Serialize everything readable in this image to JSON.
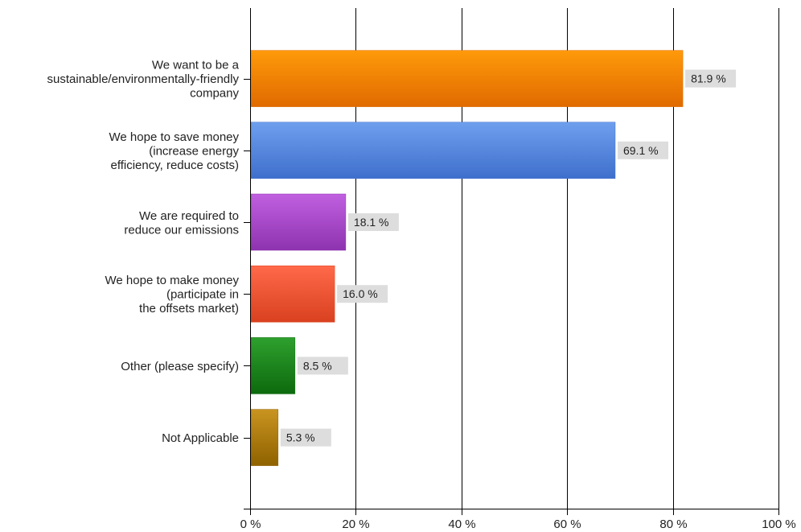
{
  "chart_data": {
    "type": "bar",
    "orientation": "horizontal",
    "title": "",
    "xlabel": "",
    "ylabel": "",
    "xlim": [
      0,
      100
    ],
    "x_ticks": [
      {
        "value": 0,
        "label": "0 %"
      },
      {
        "value": 20,
        "label": "20 %"
      },
      {
        "value": 40,
        "label": "40 %"
      },
      {
        "value": 60,
        "label": "60 %"
      },
      {
        "value": 80,
        "label": "80 %"
      },
      {
        "value": 100,
        "label": "100 %"
      }
    ],
    "grid": true,
    "legend": "none",
    "categories": [
      {
        "lines": [
          "We want to be a",
          "sustainable/environmentally-friendly",
          "company"
        ],
        "value": 81.9,
        "label": "81.9 %",
        "color_top": "#FF9A0A",
        "color_bottom": "#E06A00"
      },
      {
        "lines": [
          "We hope to save money",
          "(increase energy",
          "efficiency, reduce costs)"
        ],
        "value": 69.1,
        "label": "69.1 %",
        "color_top": "#6E9FEE",
        "color_bottom": "#3F6FCC"
      },
      {
        "lines": [
          "We are required to",
          "reduce our emissions"
        ],
        "value": 18.1,
        "label": "18.1 %",
        "color_top": "#C060E0",
        "color_bottom": "#8E33B0"
      },
      {
        "lines": [
          "We hope to make money",
          "(participate in",
          "the offsets market)"
        ],
        "value": 16.0,
        "label": "16.0 %",
        "color_top": "#FF6A4A",
        "color_bottom": "#D9411F"
      },
      {
        "lines": [
          "Other (please specify)"
        ],
        "value": 8.5,
        "label": "8.5 %",
        "color_top": "#2EA02E",
        "color_bottom": "#0D6A0D"
      },
      {
        "lines": [
          "Not Applicable"
        ],
        "value": 5.3,
        "label": "5.3 %",
        "color_top": "#C99420",
        "color_bottom": "#8F6200"
      }
    ],
    "label_background": "#DDDDDD",
    "axis_color": "#000000",
    "grid_color": "#000000"
  }
}
